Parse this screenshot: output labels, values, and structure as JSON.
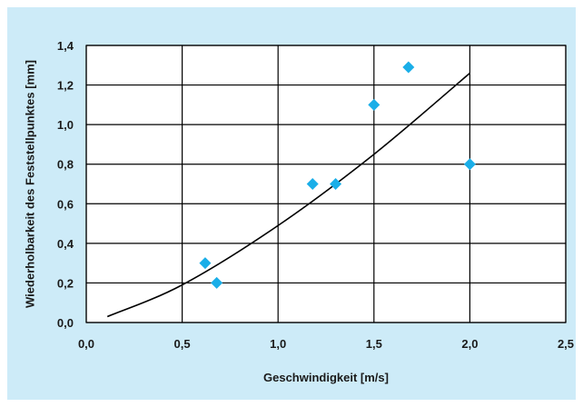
{
  "colors": {
    "panel_background": "#cdebf8",
    "plot_background": "#ffffff",
    "grid": "#000000",
    "marker": "#1aaee8",
    "trendline": "#000000"
  },
  "chart_data": {
    "type": "scatter",
    "title": "",
    "xlabel": "Geschwindigkeit [m/s]",
    "ylabel": "Wiederholbarkeit des Feststellpunktes [mm]",
    "xlim": [
      0,
      2.5
    ],
    "ylim": [
      0,
      1.4
    ],
    "xticks": [
      "0,0",
      "0,5",
      "1,0",
      "1,5",
      "2,0",
      "2,5"
    ],
    "yticks": [
      "0,0",
      "0,2",
      "0,4",
      "0,6",
      "0,8",
      "1,0",
      "1,2",
      "1,4"
    ],
    "grid": true,
    "marker": "diamond",
    "points": [
      {
        "x": 0.62,
        "y": 0.3
      },
      {
        "x": 0.68,
        "y": 0.2
      },
      {
        "x": 1.18,
        "y": 0.7
      },
      {
        "x": 1.3,
        "y": 0.7
      },
      {
        "x": 1.5,
        "y": 1.1
      },
      {
        "x": 1.68,
        "y": 1.29
      },
      {
        "x": 2.0,
        "y": 0.8
      }
    ],
    "trendline": {
      "type": "curve",
      "points": [
        {
          "x": 0.11,
          "y": 0.03
        },
        {
          "x": 0.5,
          "y": 0.19
        },
        {
          "x": 1.0,
          "y": 0.49
        },
        {
          "x": 1.5,
          "y": 0.85
        },
        {
          "x": 2.0,
          "y": 1.26
        }
      ]
    }
  }
}
